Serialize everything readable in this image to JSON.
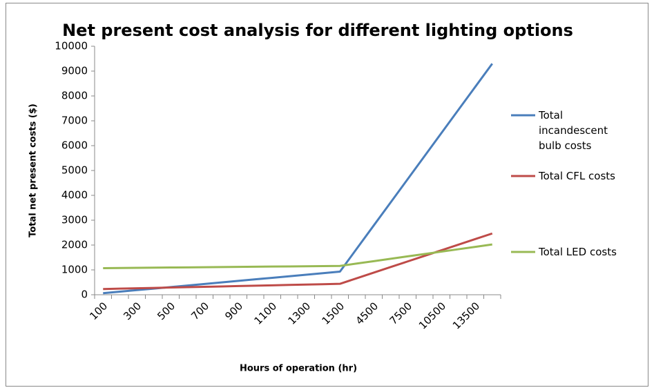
{
  "chart_data": {
    "type": "line",
    "title": "Net present cost analysis for different lighting options",
    "x_label": "Hours of operation (hr)",
    "y_label": "Total net present costs ($)",
    "categories": [
      "100",
      null,
      "300",
      null,
      "500",
      null,
      "700",
      null,
      "900",
      null,
      "1100",
      null,
      "1300",
      null,
      "1500",
      null,
      "4500",
      null,
      "7500",
      null,
      "10500",
      null,
      "13500",
      null
    ],
    "series": [
      {
        "name": "Total incandescent bulb costs",
        "color": "#4a7ebb",
        "values": [
          62,
          124,
          186,
          248,
          310,
          372,
          434,
          496,
          558,
          620,
          682,
          744,
          806,
          868,
          930,
          1860,
          2790,
          3720,
          4650,
          5580,
          6510,
          7440,
          8370,
          9300
        ]
      },
      {
        "name": "Total CFL costs",
        "color": "#be4b48",
        "values": [
          230,
          245,
          260,
          275,
          290,
          305,
          320,
          335,
          350,
          365,
          380,
          395,
          410,
          425,
          440,
          665,
          890,
          1115,
          1340,
          1565,
          1790,
          2015,
          2240,
          2465
        ]
      },
      {
        "name": "Total LED costs",
        "color": "#98b954",
        "values": [
          1070,
          1076,
          1083,
          1089,
          1096,
          1102,
          1108,
          1115,
          1121,
          1128,
          1134,
          1140,
          1147,
          1153,
          1160,
          1256,
          1352,
          1448,
          1544,
          1640,
          1736,
          1832,
          1928,
          2024
        ]
      }
    ],
    "ylim": [
      0,
      10000
    ],
    "yticks": [
      0,
      1000,
      2000,
      3000,
      4000,
      5000,
      6000,
      7000,
      8000,
      9000,
      10000
    ],
    "grid": false,
    "legend": "right"
  }
}
